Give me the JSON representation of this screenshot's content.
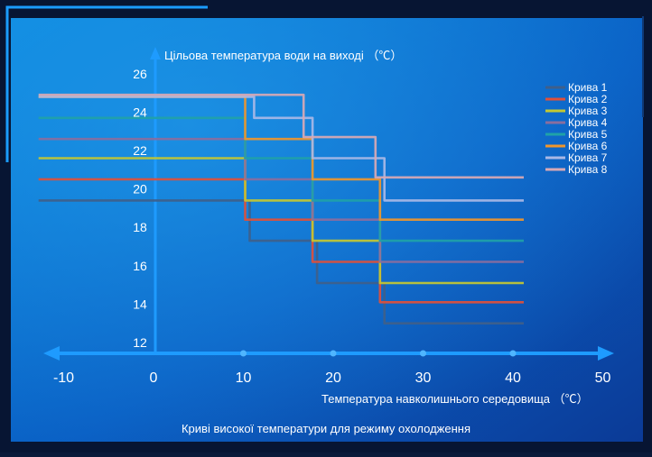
{
  "chart_data": {
    "type": "line",
    "title": "",
    "ylabel": "Цільова температура води на виході （℃）",
    "xlabel": "Температура навколишнього середовища （℃）",
    "footer": "Криві високої температури для режиму охолодження",
    "x_ticks": [
      "-10",
      "0",
      "10",
      "20",
      "30",
      "40",
      "50"
    ],
    "y_ticks": [
      "12",
      "14",
      "16",
      "18",
      "20",
      "22",
      "24",
      "26"
    ],
    "xlim": [
      -10,
      50
    ],
    "ylim": [
      11,
      27
    ],
    "grid": false,
    "legend_position": "right",
    "series": [
      {
        "name": "Крива 1",
        "color": "#3f5f8a",
        "points": [
          [
            -13,
            19.4
          ],
          [
            10.5,
            19.4
          ],
          [
            10.5,
            17.3
          ],
          [
            18,
            17.3
          ],
          [
            18,
            15.1
          ],
          [
            25.5,
            15.1
          ],
          [
            25.5,
            13.0
          ],
          [
            41,
            13.0
          ]
        ]
      },
      {
        "name": "Крива 2",
        "color": "#e0503a",
        "points": [
          [
            -13,
            20.5
          ],
          [
            10,
            20.5
          ],
          [
            10,
            18.4
          ],
          [
            17.5,
            18.4
          ],
          [
            17.5,
            16.2
          ],
          [
            25,
            16.2
          ],
          [
            25,
            14.1
          ],
          [
            41,
            14.1
          ]
        ]
      },
      {
        "name": "Крива 3",
        "color": "#c4c832",
        "points": [
          [
            -13,
            21.6
          ],
          [
            10,
            21.6
          ],
          [
            10,
            19.4
          ],
          [
            17.5,
            19.4
          ],
          [
            17.5,
            17.3
          ],
          [
            25,
            17.3
          ],
          [
            25,
            15.1
          ],
          [
            41,
            15.1
          ]
        ]
      },
      {
        "name": "Крива 4",
        "color": "#8a6e9e",
        "points": [
          [
            -13,
            22.6
          ],
          [
            10,
            22.6
          ],
          [
            10,
            20.5
          ],
          [
            17.5,
            20.5
          ],
          [
            17.5,
            18.4
          ],
          [
            25,
            18.4
          ],
          [
            25,
            16.2
          ],
          [
            41,
            16.2
          ]
        ]
      },
      {
        "name": "Крива 5",
        "color": "#1fa2a8",
        "points": [
          [
            -13,
            23.7
          ],
          [
            10,
            23.7
          ],
          [
            10,
            21.6
          ],
          [
            17.5,
            21.6
          ],
          [
            17.5,
            19.4
          ],
          [
            25,
            19.4
          ],
          [
            25,
            17.3
          ],
          [
            41,
            17.3
          ]
        ]
      },
      {
        "name": "Крива 6",
        "color": "#f0962c",
        "points": [
          [
            -13,
            24.8
          ],
          [
            10,
            24.8
          ],
          [
            10,
            22.6
          ],
          [
            17.5,
            22.6
          ],
          [
            17.5,
            20.5
          ],
          [
            25,
            20.5
          ],
          [
            25,
            18.4
          ],
          [
            41,
            18.4
          ]
        ]
      },
      {
        "name": "Крива 7",
        "color": "#a9b8e6",
        "points": [
          [
            -13,
            24.8
          ],
          [
            11,
            24.8
          ],
          [
            11,
            23.7
          ],
          [
            17.5,
            23.7
          ],
          [
            17.5,
            21.6
          ],
          [
            25.5,
            21.6
          ],
          [
            25.5,
            19.4
          ],
          [
            41,
            19.4
          ]
        ]
      },
      {
        "name": "Крива 8",
        "color": "#d9a9b4",
        "points": [
          [
            -13,
            24.9
          ],
          [
            16.5,
            24.9
          ],
          [
            16.5,
            22.7
          ],
          [
            24.5,
            22.7
          ],
          [
            24.5,
            20.6
          ],
          [
            41,
            20.6
          ]
        ]
      }
    ]
  }
}
